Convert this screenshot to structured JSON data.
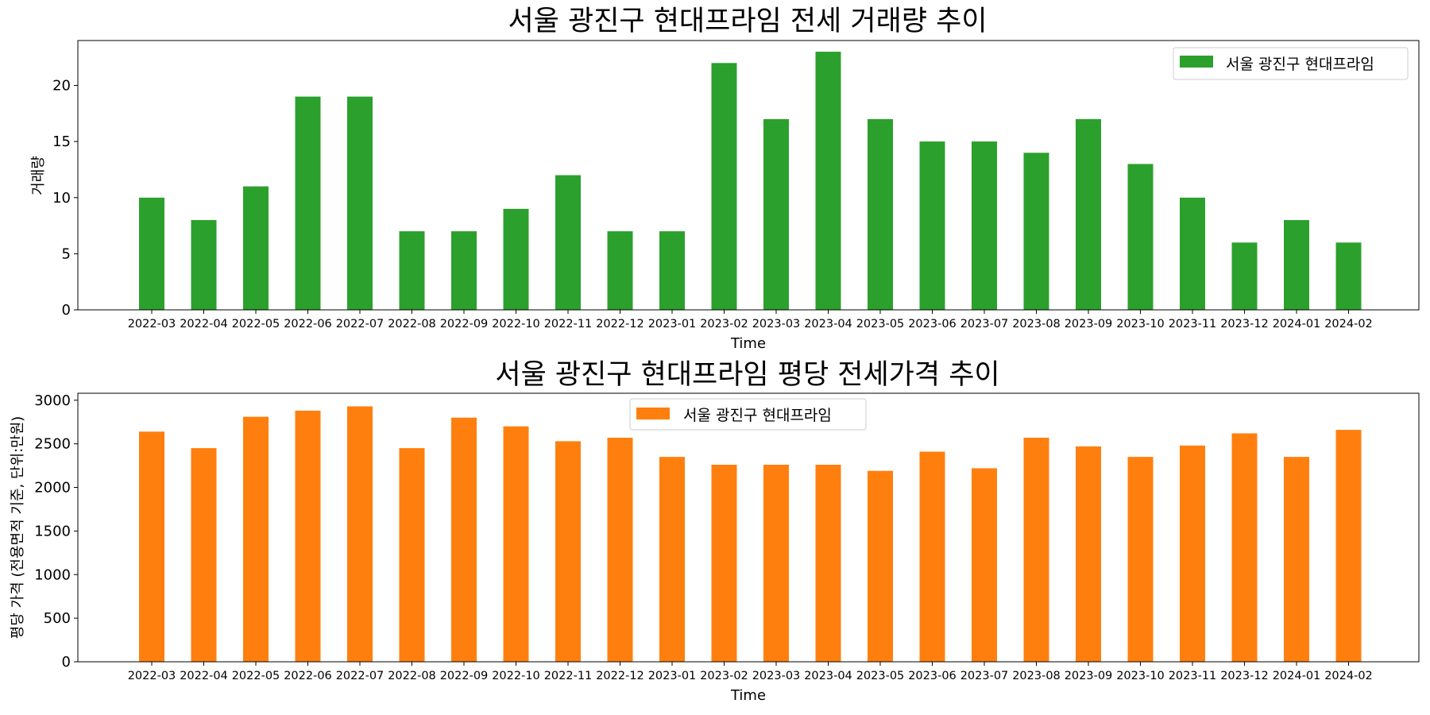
{
  "chart_data": [
    {
      "type": "bar",
      "title": "서울 광진구 현대프라임 전세 거래량 추이",
      "xlabel": "Time",
      "ylabel": "거래량",
      "ylim": [
        0,
        24
      ],
      "yticks": [
        0,
        5,
        10,
        15,
        20
      ],
      "legend": "top-right",
      "color": "#2ca02c",
      "grid": false,
      "categories": [
        "2022-03",
        "2022-04",
        "2022-05",
        "2022-06",
        "2022-07",
        "2022-08",
        "2022-09",
        "2022-10",
        "2022-11",
        "2022-12",
        "2023-01",
        "2023-02",
        "2023-03",
        "2023-04",
        "2023-05",
        "2023-06",
        "2023-07",
        "2023-08",
        "2023-09",
        "2023-10",
        "2023-11",
        "2023-12",
        "2024-01",
        "2024-02"
      ],
      "series": [
        {
          "name": "서울 광진구 현대프라임",
          "values": [
            10,
            8,
            11,
            19,
            19,
            7,
            7,
            9,
            12,
            7,
            7,
            22,
            17,
            23,
            17,
            15,
            15,
            14,
            17,
            13,
            10,
            6,
            8,
            6
          ]
        }
      ]
    },
    {
      "type": "bar",
      "title": "서울 광진구 현대프라임 평당 전세가격 추이",
      "xlabel": "Time",
      "ylabel": "평당 가격 (전용면적 기준, 단위:만원)",
      "ylim": [
        0,
        3080
      ],
      "yticks": [
        0,
        500,
        1000,
        1500,
        2000,
        2500,
        3000
      ],
      "legend": "top-center",
      "color": "#ff7f0e",
      "grid": false,
      "categories": [
        "2022-03",
        "2022-04",
        "2022-05",
        "2022-06",
        "2022-07",
        "2022-08",
        "2022-09",
        "2022-10",
        "2022-11",
        "2022-12",
        "2023-01",
        "2023-02",
        "2023-03",
        "2023-04",
        "2023-05",
        "2023-06",
        "2023-07",
        "2023-08",
        "2023-09",
        "2023-10",
        "2023-11",
        "2023-12",
        "2024-01",
        "2024-02"
      ],
      "series": [
        {
          "name": "서울 광진구 현대프라임",
          "values": [
            2640,
            2450,
            2810,
            2880,
            2930,
            2450,
            2800,
            2700,
            2530,
            2570,
            2350,
            2260,
            2260,
            2260,
            2190,
            2410,
            2220,
            2570,
            2470,
            2350,
            2480,
            2620,
            2350,
            2660
          ]
        }
      ]
    }
  ]
}
